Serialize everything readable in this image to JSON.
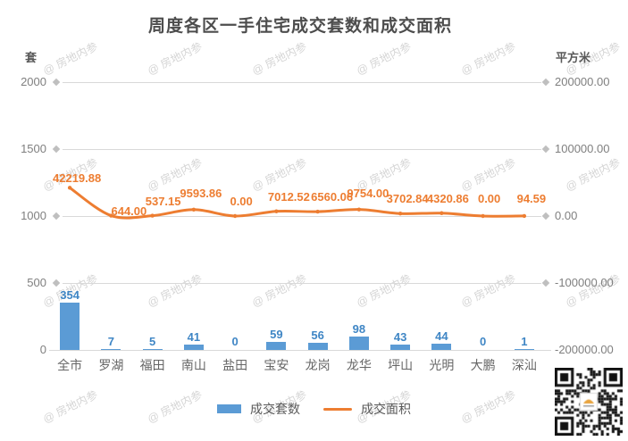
{
  "title": "周度各区一手住宅成交套数和成交面积",
  "watermark_text": "@ 房地内参",
  "colors": {
    "bar": "#5B9BD5",
    "bar_label": "#3F86C5",
    "line": "#ED7D31",
    "grid": "#D9D9D9",
    "tick_text": "#7F7F7F",
    "title_text": "#4D4D4D"
  },
  "chart_data": {
    "type": "combo",
    "title": "周度各区一手住宅成交套数和成交面积",
    "categories": [
      "全市",
      "罗湖",
      "福田",
      "南山",
      "盐田",
      "宝安",
      "龙岗",
      "龙华",
      "坪山",
      "光明",
      "大鹏",
      "深汕"
    ],
    "series": [
      {
        "name": "成交套数",
        "type": "bar",
        "axis": "left",
        "values": [
          354,
          7,
          5,
          41,
          0,
          59,
          56,
          98,
          43,
          44,
          0,
          1
        ],
        "labels": [
          "354",
          "7",
          "5",
          "41",
          "0",
          "59",
          "56",
          "98",
          "43",
          "44",
          "0",
          "1"
        ]
      },
      {
        "name": "成交面积",
        "type": "line",
        "axis": "right",
        "values": [
          42219.88,
          644.0,
          537.15,
          9593.86,
          0.0,
          7012.52,
          6560.06,
          9754.0,
          3702.84,
          4320.86,
          0.0,
          94.59
        ],
        "labels": [
          "42219.88",
          "644.00",
          "537.15",
          "9593.86",
          "0.00",
          "7012.52",
          "6560.06",
          "9754.00",
          "3702.84",
          "4320.86",
          "0.00",
          "94.59"
        ]
      }
    ],
    "left_axis": {
      "name": "套",
      "min": 0,
      "max": 2000,
      "ticks": [
        "2000",
        "1500",
        "1000",
        "500",
        "0"
      ]
    },
    "right_axis": {
      "name": "平方米",
      "min": -200000,
      "max": 200000,
      "ticks": [
        "200000.00",
        "100000.00",
        "0.00",
        "-100000.00",
        "-200000.00"
      ]
    },
    "legend_position": "bottom",
    "grid": "horizontal-only"
  }
}
